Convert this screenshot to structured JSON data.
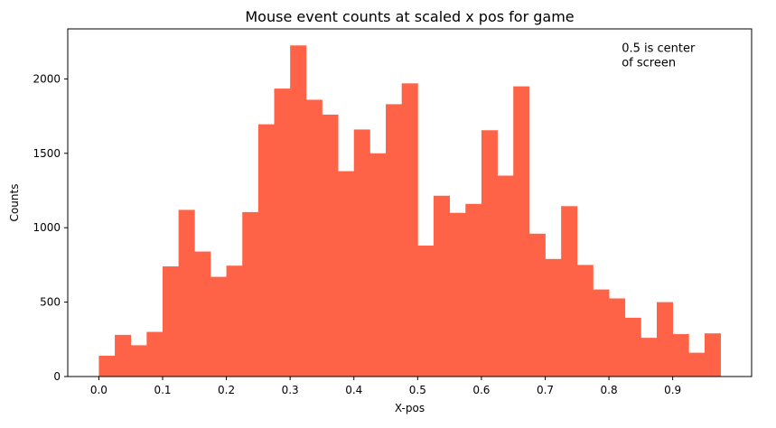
{
  "chart_data": {
    "type": "bar",
    "title": "Mouse event counts at scaled x pos for game",
    "xlabel": "X-pos",
    "ylabel": "Counts",
    "bin_width": 0.025,
    "x_start": 0.0,
    "values": [
      140,
      280,
      210,
      300,
      740,
      1120,
      840,
      670,
      745,
      1105,
      1695,
      1935,
      2225,
      1860,
      1760,
      1380,
      1660,
      1500,
      1830,
      1970,
      880,
      1215,
      1100,
      1160,
      1655,
      1350,
      1950,
      960,
      790,
      1145,
      750,
      585,
      525,
      395,
      260,
      500,
      285,
      160,
      290
    ],
    "xticks": [
      0.0,
      0.1,
      0.2,
      0.3,
      0.4,
      0.5,
      0.6,
      0.7,
      0.8,
      0.9
    ],
    "xtick_labels": [
      "0.0",
      "0.1",
      "0.2",
      "0.3",
      "0.4",
      "0.5",
      "0.6",
      "0.7",
      "0.8",
      "0.9"
    ],
    "yticks": [
      0,
      500,
      1000,
      1500,
      2000
    ],
    "ytick_labels": [
      "0",
      "500",
      "1000",
      "1500",
      "2000"
    ],
    "xlim": [
      -0.04875,
      1.02375
    ],
    "ylim": [
      0,
      2336
    ],
    "bar_color": "#FF6347",
    "grid": false,
    "annotation": {
      "lines": [
        "0.5 is center",
        "of screen"
      ],
      "x": 0.82,
      "y": 2180
    }
  }
}
